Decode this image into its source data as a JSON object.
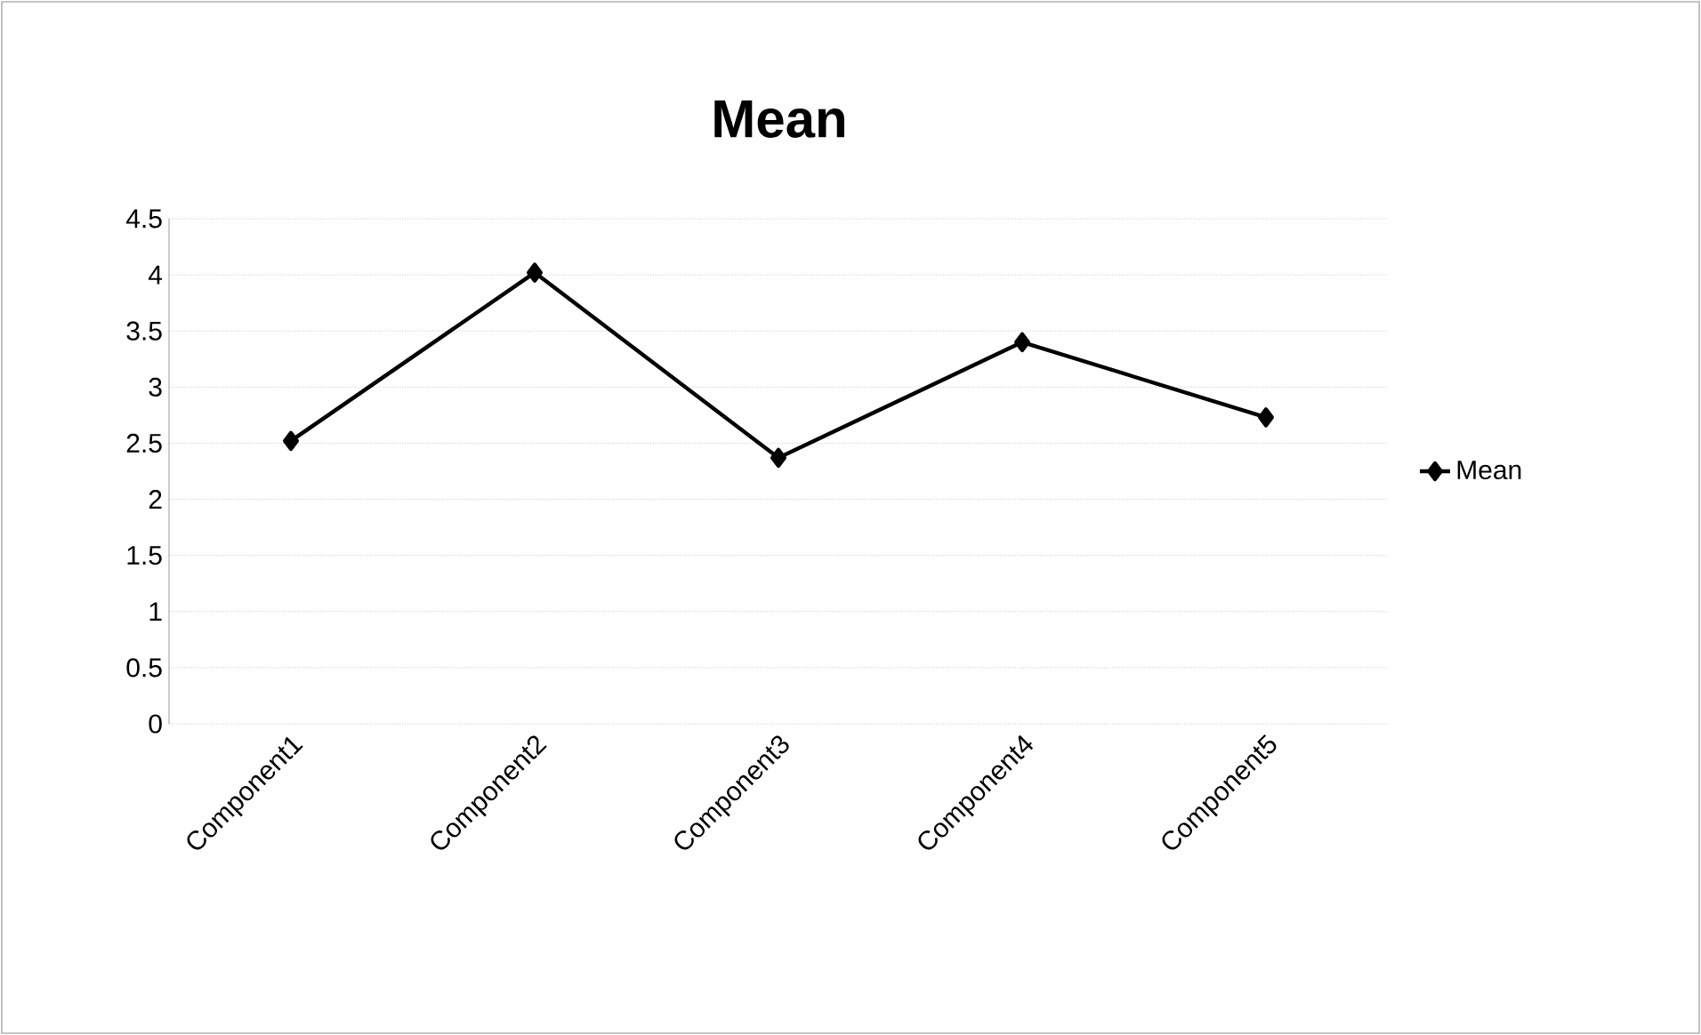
{
  "chart_data": {
    "type": "line",
    "title": "Mean",
    "categories": [
      "Component1",
      "Component2",
      "Component3",
      "Component4",
      "Component5"
    ],
    "series": [
      {
        "name": "Mean",
        "color": "#000000",
        "values": [
          2.52,
          4.02,
          2.37,
          3.4,
          2.73
        ]
      }
    ],
    "ylim": [
      0,
      4.5
    ],
    "yticks": [
      0,
      0.5,
      1,
      1.5,
      2,
      2.5,
      3,
      3.5,
      4,
      4.5
    ],
    "grid": "y",
    "legend": "right",
    "marker": "diamond",
    "line_style": "solid"
  }
}
